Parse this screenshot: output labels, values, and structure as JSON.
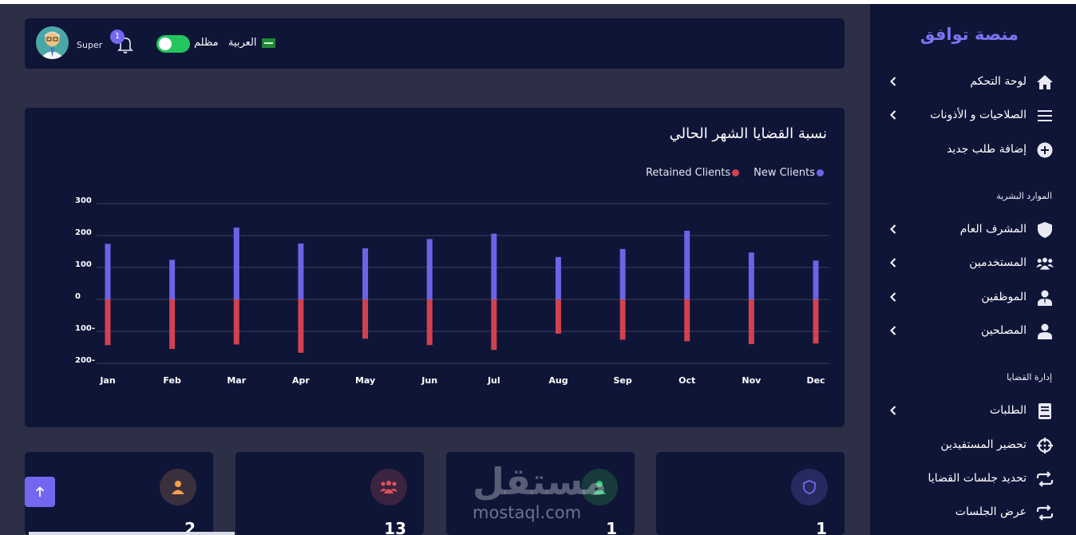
{
  "sidebar": {
    "brand": "منصة توافق",
    "items": [
      {
        "label": "لوحة التحكم",
        "has_chevron": true
      },
      {
        "label": "الصلاحيات و الأذونات",
        "has_chevron": true
      },
      {
        "label": "إضافة طلب جديد",
        "has_chevron": false
      },
      {
        "label": "المشرف العام",
        "has_chevron": true
      },
      {
        "label": "المستخدمين",
        "has_chevron": true
      },
      {
        "label": "الموظفين",
        "has_chevron": true
      },
      {
        "label": "المصلحين",
        "has_chevron": true
      },
      {
        "label": "الطلبات",
        "has_chevron": true
      },
      {
        "label": "تحضير المستفيدين",
        "has_chevron": false
      },
      {
        "label": "تحديد جلسات القضايا",
        "has_chevron": false
      },
      {
        "label": "عرض الجلسات",
        "has_chevron": false
      }
    ],
    "sections": {
      "hr": "الموارد البشرية",
      "cases": "إدارة القضايا"
    }
  },
  "header": {
    "username": "Super",
    "notification_count": "1",
    "dark_mode_label": "مظلم",
    "language_label": "العربية",
    "dark_mode_on": true
  },
  "chart_title": "نسبة القضايا الشهر الحالي",
  "chart_data": {
    "type": "bar",
    "categories": [
      "Jan",
      "Feb",
      "Mar",
      "Apr",
      "May",
      "Jun",
      "Jul",
      "Aug",
      "Sep",
      "Oct",
      "Nov",
      "Dec"
    ],
    "series": [
      {
        "name": "New Clients",
        "color": "#6c63e6",
        "values": [
          174,
          124,
          225,
          175,
          160,
          189,
          206,
          133,
          158,
          215,
          147,
          122
        ]
      },
      {
        "name": "Retained Clients",
        "color": "#d2414f",
        "values": [
          -143,
          -155,
          -141,
          -167,
          -123,
          -143,
          -158,
          -107,
          -126,
          -131,
          -140,
          -138
        ]
      }
    ],
    "ylim": [
      -200,
      300
    ],
    "yticks": [
      "300",
      "200",
      "100",
      "0",
      "-100",
      "-200"
    ],
    "ytick_labels": [
      "300",
      "200",
      "100",
      "0",
      "100-",
      "200-"
    ],
    "grid": true,
    "legend_position": "top-right"
  },
  "stats": [
    {
      "value": "2",
      "icon": "user-icon",
      "color": "#f6a04d",
      "bg": "#3a2f3d"
    },
    {
      "value": "13",
      "icon": "users-icon",
      "color": "#e2525e",
      "bg": "#3b2440"
    },
    {
      "value": "1",
      "icon": "user-tie-icon",
      "color": "#28c76f",
      "bg": "#173a3d"
    },
    {
      "value": "1",
      "icon": "shield-icon",
      "color": "#7367f0",
      "bg": "#272a5e"
    }
  ],
  "watermark": {
    "arabic": "مستقل",
    "latin": "mostaql.com"
  }
}
